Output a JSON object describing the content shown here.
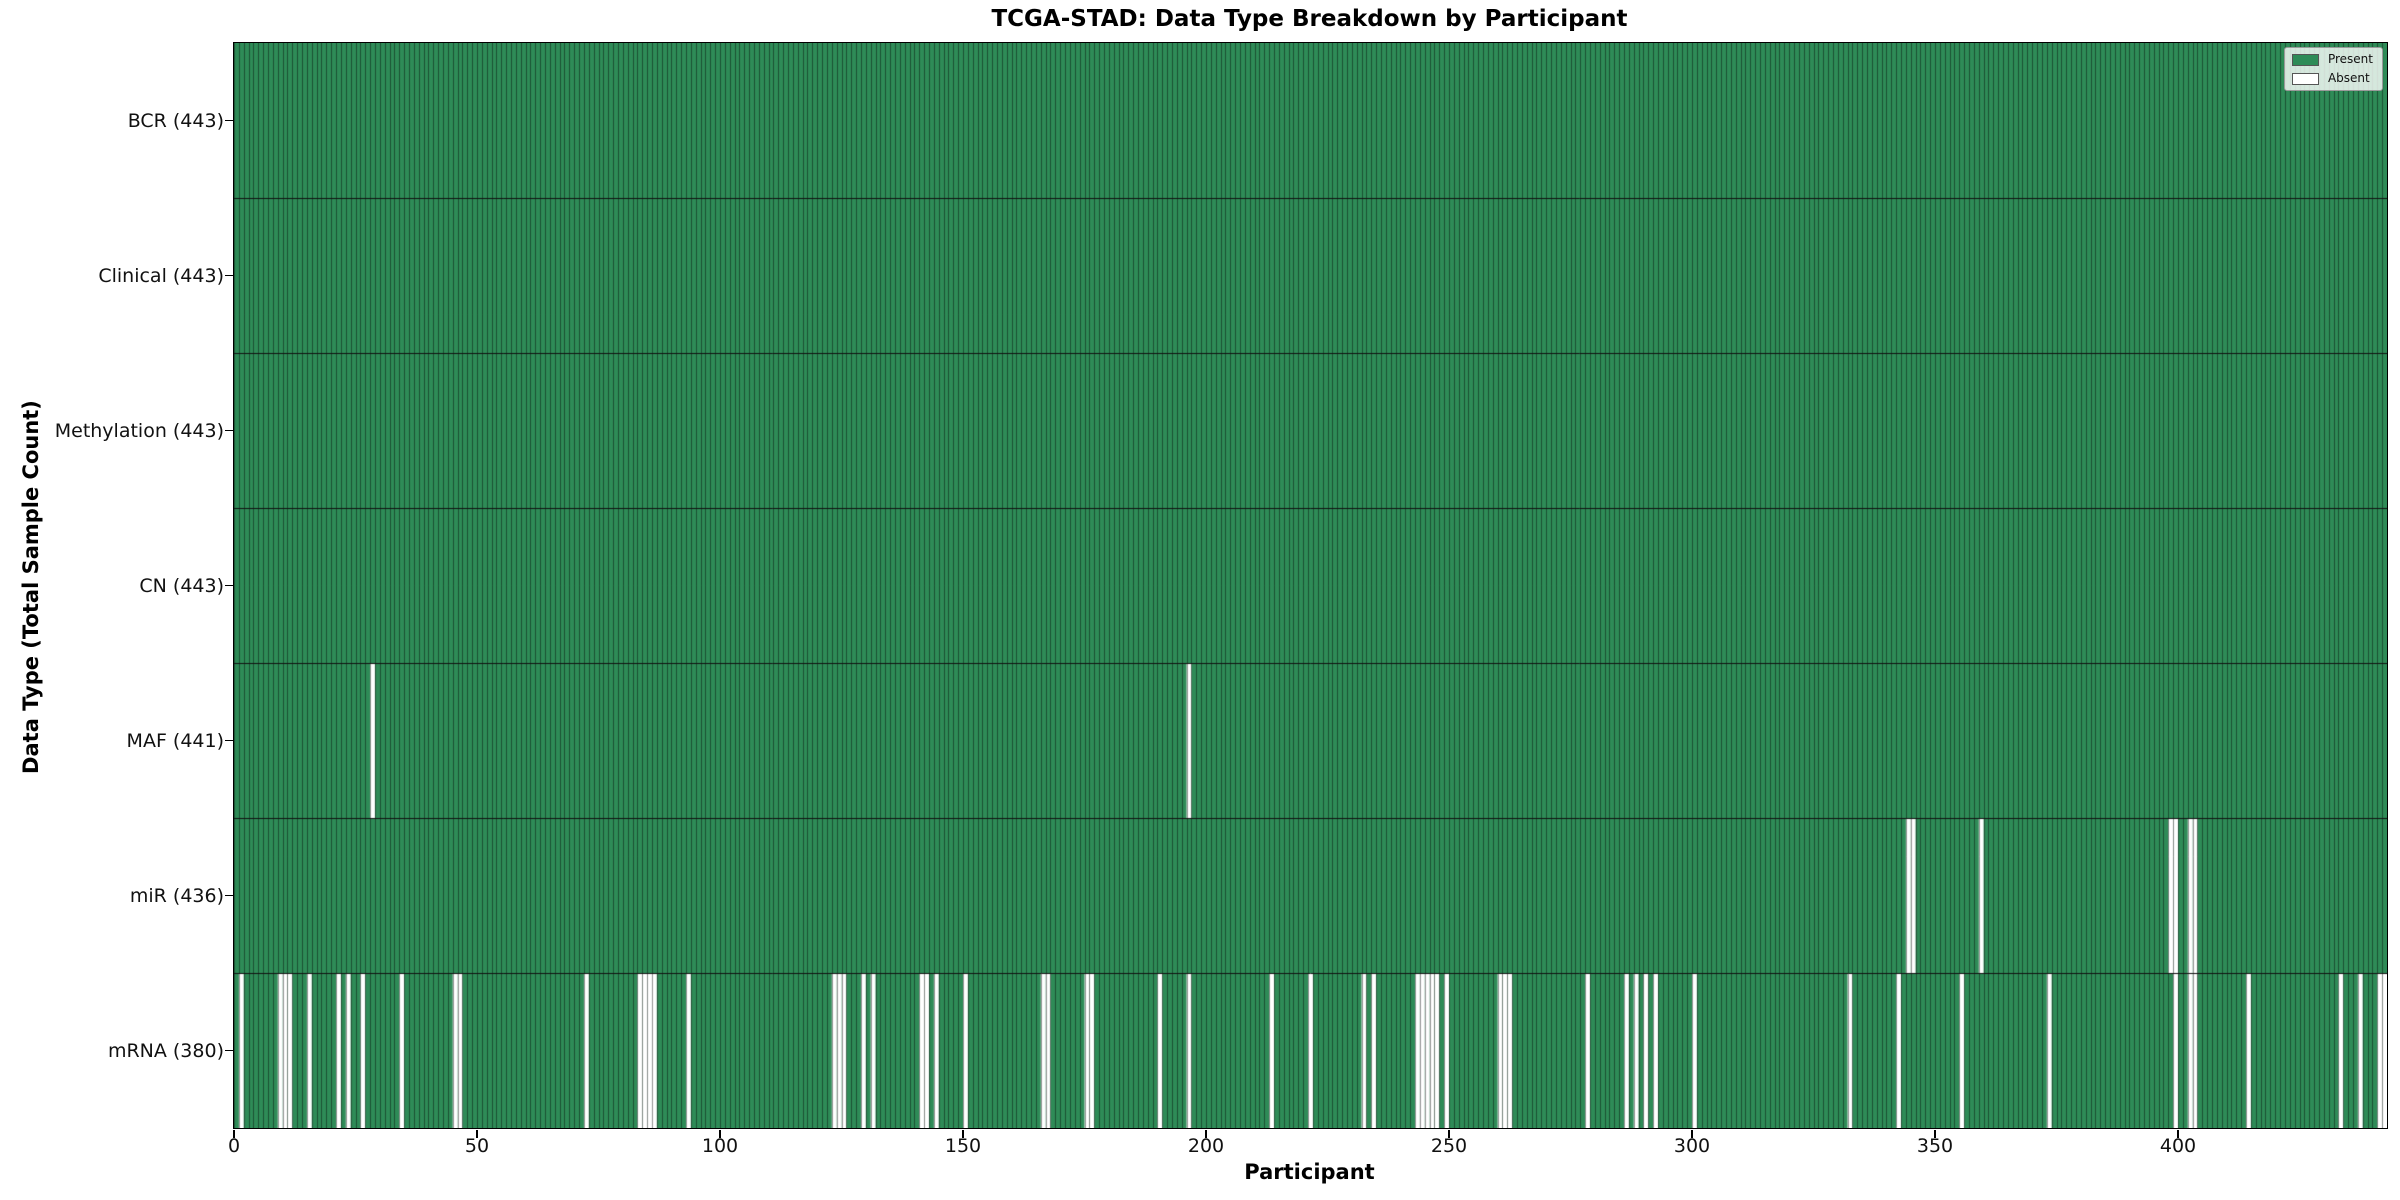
{
  "colors": {
    "present": "#2e8b57",
    "absent": "#ffffff",
    "bar_edge": "rgba(0,0,0,0.42)",
    "row_divider": "#111111",
    "plot_border": "#000000",
    "tick": "#000000"
  },
  "legend": {
    "entries": [
      {
        "label": "Present",
        "swatch_color": "#2e8b57"
      },
      {
        "label": "Absent",
        "swatch_color": "#ffffff"
      }
    ]
  },
  "chart_data": {
    "type": "heatmap",
    "title": "TCGA-STAD: Data Type Breakdown by Participant",
    "xlabel": "Participant",
    "ylabel": "Data Type (Total Sample Count)",
    "legend_position": "upper right",
    "grid": false,
    "x_axis": {
      "range": [
        0,
        443
      ],
      "n_participants": 443,
      "ticks": [
        0,
        50,
        100,
        150,
        200,
        250,
        300,
        350,
        400
      ]
    },
    "cell_values": {
      "present": 1,
      "absent": 0
    },
    "rows": [
      {
        "name": "BCR",
        "label": "BCR (443)",
        "present_count": 443,
        "absent_participants": []
      },
      {
        "name": "Clinical",
        "label": "Clinical (443)",
        "present_count": 443,
        "absent_participants": []
      },
      {
        "name": "Methylation",
        "label": "Methylation (443)",
        "present_count": 443,
        "absent_participants": []
      },
      {
        "name": "CN",
        "label": "CN (443)",
        "present_count": 443,
        "absent_participants": []
      },
      {
        "name": "MAF",
        "label": "MAF (441)",
        "present_count": 441,
        "absent_participants": [
          28,
          196
        ]
      },
      {
        "name": "miR",
        "label": "miR (436)",
        "present_count": 436,
        "absent_participants": [
          344,
          345,
          359,
          398,
          399,
          402,
          403
        ]
      },
      {
        "name": "mRNA",
        "label": "mRNA (380)",
        "present_count": 380,
        "absent_participants": [
          1,
          9,
          10,
          11,
          15,
          21,
          23,
          26,
          34,
          45,
          46,
          72,
          83,
          84,
          85,
          86,
          93,
          123,
          124,
          125,
          129,
          131,
          141,
          142,
          144,
          150,
          166,
          167,
          175,
          176,
          190,
          196,
          213,
          221,
          232,
          234,
          243,
          244,
          245,
          246,
          247,
          249,
          260,
          261,
          262,
          278,
          286,
          288,
          290,
          292,
          300,
          332,
          342,
          355,
          373,
          399,
          402,
          403,
          414,
          433,
          437,
          441,
          442
        ]
      }
    ]
  }
}
